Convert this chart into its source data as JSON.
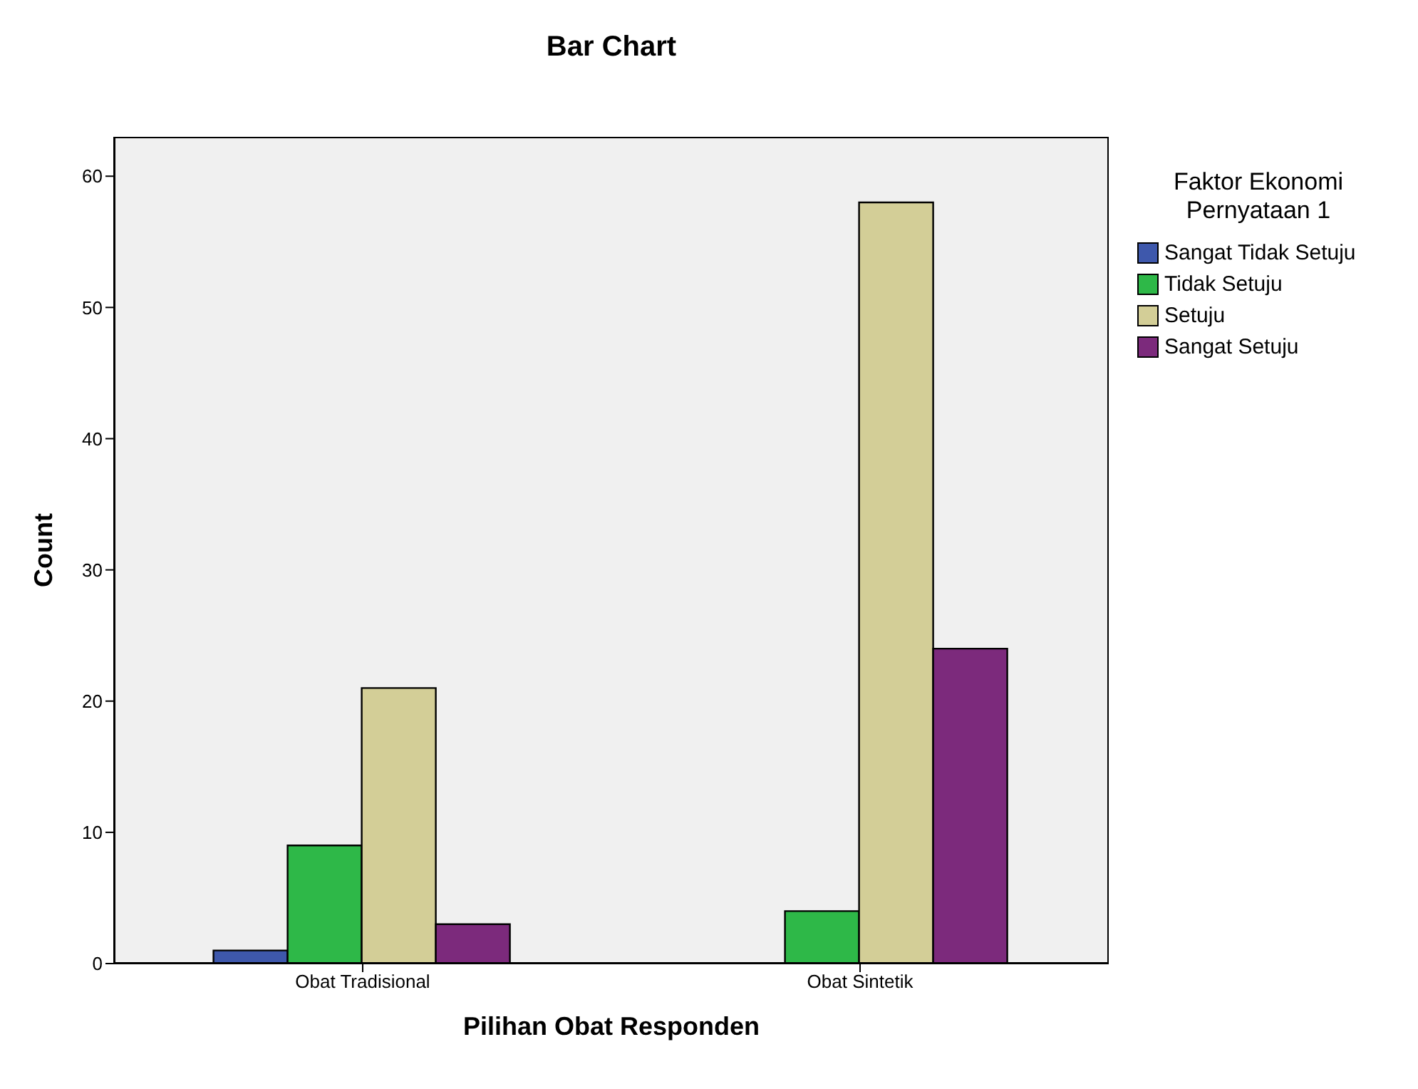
{
  "chart_data": {
    "type": "bar",
    "title": "Bar Chart",
    "xlabel": "Pilihan Obat Responden",
    "ylabel": "Count",
    "legend_title": "Faktor Ekonomi Pernyataan 1",
    "categories": [
      "Obat Tradisional",
      "Obat Sintetik"
    ],
    "series": [
      {
        "name": "Sangat Tidak Setuju",
        "color": "#3e58ac",
        "values": [
          1,
          null
        ]
      },
      {
        "name": "Tidak Setuju",
        "color": "#2eb848",
        "values": [
          9,
          4
        ]
      },
      {
        "name": "Setuju",
        "color": "#d3ce97",
        "values": [
          21,
          58
        ]
      },
      {
        "name": "Sangat Setuju",
        "color": "#7c2a7c",
        "values": [
          3,
          24
        ]
      }
    ],
    "ylim": [
      0,
      63
    ],
    "yticks": [
      0,
      10,
      20,
      30,
      40,
      50,
      60
    ],
    "grid": false,
    "legend": "right"
  }
}
